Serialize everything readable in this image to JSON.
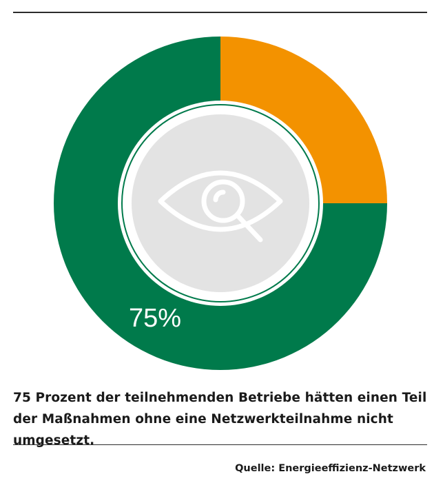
{
  "chart_data": {
    "type": "pie",
    "variant": "donut",
    "slices": [
      {
        "label": "75%",
        "value": 75,
        "color": "#007A4B"
      },
      {
        "label": "",
        "value": 25,
        "color": "#F39200"
      }
    ],
    "center_icon": "eye-magnifier-icon",
    "center_fill": "#E3E3E3"
  },
  "caption": "75 Prozent der teilnehmenden Betriebe hätten einen Teil der Maßnahmen ohne eine Netzwerkteilnahme nicht umgesetzt.",
  "source": "Quelle: Energieeffizienz-Netzwerk"
}
